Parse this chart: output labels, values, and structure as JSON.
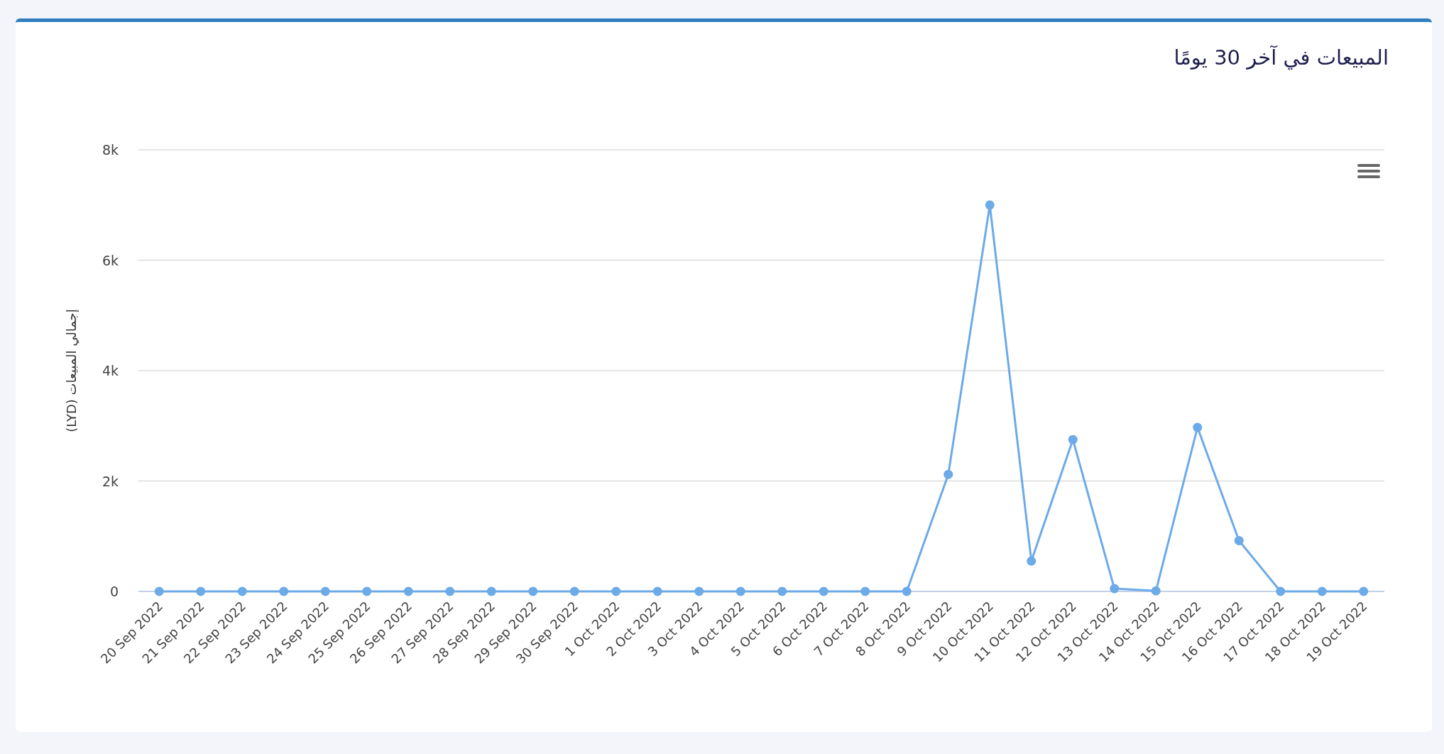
{
  "chart_data": {
    "type": "line",
    "title": "المبيعات في آخر 30 يومًا",
    "ylabel": "إجمالي المبيعات (LYD)",
    "categories": [
      "20 Sep 2022",
      "21 Sep 2022",
      "22 Sep 2022",
      "23 Sep 2022",
      "24 Sep 2022",
      "25 Sep 2022",
      "26 Sep 2022",
      "27 Sep 2022",
      "28 Sep 2022",
      "29 Sep 2022",
      "30 Sep 2022",
      "1 Oct 2022",
      "2 Oct 2022",
      "3 Oct 2022",
      "4 Oct 2022",
      "5 Oct 2022",
      "6 Oct 2022",
      "7 Oct 2022",
      "8 Oct 2022",
      "9 Oct 2022",
      "10 Oct 2022",
      "11 Oct 2022",
      "12 Oct 2022",
      "13 Oct 2022",
      "14 Oct 2022",
      "15 Oct 2022",
      "16 Oct 2022",
      "17 Oct 2022",
      "18 Oct 2022",
      "19 Oct 2022"
    ],
    "series": [
      {
        "color": "#6caae8",
        "values": [
          0,
          0,
          0,
          0,
          0,
          0,
          0,
          0,
          0,
          0,
          0,
          0,
          0,
          0,
          0,
          0,
          0,
          0,
          0,
          2120,
          7000,
          550,
          2750,
          50,
          10,
          2970,
          920,
          0,
          0,
          0
        ]
      }
    ],
    "ylim": [
      0,
      8000
    ],
    "yticks": [
      0,
      {
        "value": 2000,
        "label": "2k"
      },
      {
        "value": 4000,
        "label": "4k"
      },
      {
        "value": 6000,
        "label": "6k"
      },
      {
        "value": 8000,
        "label": "8k"
      }
    ],
    "grid": "y",
    "marker": "circle",
    "line_style": "solid"
  }
}
